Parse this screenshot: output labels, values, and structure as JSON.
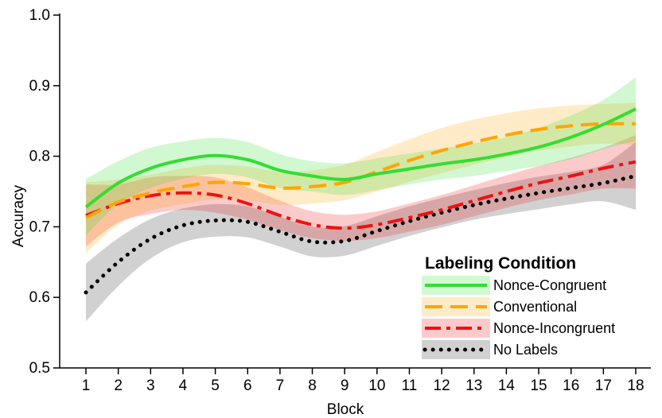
{
  "chart_data": {
    "type": "line",
    "xlabel": "Block",
    "ylabel": "Accuracy",
    "xlim": [
      0.55,
      18.1
    ],
    "ylim": [
      0.5,
      1.0
    ],
    "x_ticks": [
      1,
      2,
      3,
      4,
      5,
      6,
      7,
      8,
      9,
      10,
      11,
      12,
      13,
      14,
      15,
      16,
      17,
      18
    ],
    "y_ticks": [
      "0.5",
      "0.6",
      "0.7",
      "0.8",
      "0.9",
      "1.0"
    ],
    "grid": false,
    "legend": {
      "title": "Labeling Condition",
      "placement": "bottom-right"
    },
    "x": [
      1,
      2,
      3,
      4,
      5,
      6,
      7,
      8,
      9,
      10,
      11,
      12,
      13,
      14,
      15,
      16,
      17,
      18
    ],
    "series": [
      {
        "name": "Nonce-Congruent",
        "color": "#33dd33",
        "dash": "solid",
        "values": [
          0.728,
          0.762,
          0.783,
          0.795,
          0.801,
          0.795,
          0.78,
          0.772,
          0.767,
          0.775,
          0.782,
          0.789,
          0.795,
          0.803,
          0.813,
          0.827,
          0.845,
          0.867
        ],
        "upper": [
          0.768,
          0.793,
          0.812,
          0.821,
          0.826,
          0.82,
          0.803,
          0.793,
          0.79,
          0.797,
          0.804,
          0.811,
          0.818,
          0.827,
          0.84,
          0.858,
          0.88,
          0.912
        ],
        "lower": [
          0.688,
          0.732,
          0.755,
          0.768,
          0.775,
          0.77,
          0.755,
          0.75,
          0.745,
          0.752,
          0.76,
          0.767,
          0.772,
          0.779,
          0.786,
          0.796,
          0.81,
          0.822
        ]
      },
      {
        "name": "Conventional",
        "color": "#ffa500",
        "dash": "long",
        "values": [
          0.713,
          0.735,
          0.748,
          0.757,
          0.763,
          0.761,
          0.755,
          0.757,
          0.763,
          0.778,
          0.794,
          0.808,
          0.82,
          0.83,
          0.838,
          0.843,
          0.846,
          0.846
        ],
        "upper": [
          0.763,
          0.767,
          0.774,
          0.783,
          0.788,
          0.785,
          0.778,
          0.78,
          0.788,
          0.806,
          0.824,
          0.84,
          0.852,
          0.861,
          0.868,
          0.872,
          0.874,
          0.876
        ],
        "lower": [
          0.663,
          0.703,
          0.723,
          0.732,
          0.739,
          0.737,
          0.731,
          0.733,
          0.738,
          0.75,
          0.764,
          0.776,
          0.788,
          0.799,
          0.808,
          0.814,
          0.818,
          0.816
        ]
      },
      {
        "name": "Nonce-Incongruent",
        "color": "#ee1111",
        "dash": "dashdot",
        "values": [
          0.716,
          0.733,
          0.744,
          0.748,
          0.745,
          0.733,
          0.716,
          0.703,
          0.698,
          0.703,
          0.713,
          0.724,
          0.737,
          0.75,
          0.762,
          0.772,
          0.783,
          0.792
        ],
        "upper": [
          0.76,
          0.76,
          0.77,
          0.772,
          0.77,
          0.756,
          0.737,
          0.722,
          0.717,
          0.722,
          0.733,
          0.745,
          0.759,
          0.773,
          0.786,
          0.798,
          0.812,
          0.83
        ],
        "lower": [
          0.672,
          0.706,
          0.718,
          0.724,
          0.72,
          0.71,
          0.695,
          0.684,
          0.68,
          0.684,
          0.693,
          0.703,
          0.715,
          0.727,
          0.738,
          0.746,
          0.754,
          0.754
        ]
      },
      {
        "name": "No Labels",
        "color": "#000000",
        "dash": "dotted",
        "values": [
          0.607,
          0.65,
          0.683,
          0.702,
          0.709,
          0.707,
          0.693,
          0.679,
          0.68,
          0.694,
          0.708,
          0.72,
          0.731,
          0.74,
          0.748,
          0.755,
          0.762,
          0.772
        ],
        "upper": [
          0.648,
          0.684,
          0.711,
          0.726,
          0.732,
          0.729,
          0.714,
          0.7,
          0.701,
          0.715,
          0.729,
          0.741,
          0.752,
          0.762,
          0.771,
          0.778,
          0.788,
          0.82
        ],
        "lower": [
          0.566,
          0.616,
          0.655,
          0.678,
          0.686,
          0.685,
          0.672,
          0.658,
          0.659,
          0.673,
          0.687,
          0.699,
          0.71,
          0.718,
          0.725,
          0.732,
          0.736,
          0.724
        ]
      }
    ]
  }
}
